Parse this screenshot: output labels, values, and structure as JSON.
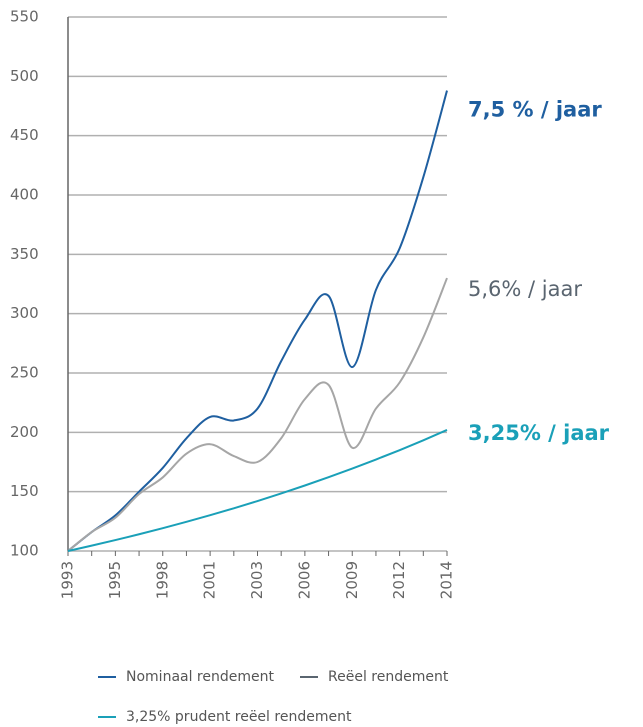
{
  "chart_data": {
    "type": "line",
    "categories": [
      "1993",
      null,
      "1995",
      null,
      "1998",
      null,
      "2001",
      null,
      "2003",
      null,
      "2006",
      null,
      "2009",
      null,
      "2012",
      null,
      "2014"
    ],
    "series": [
      {
        "name": "Nominaal rendement",
        "color": "#1f5fa0",
        "annotation": "7,5 % / jaar",
        "values": [
          100,
          116,
          130,
          150,
          170,
          195,
          213,
          210,
          220,
          260,
          295,
          315,
          255,
          320,
          355,
          415,
          488
        ]
      },
      {
        "name": "Reëel rendement",
        "color": "#a6a6a6",
        "annotation": "5,6% / jaar",
        "values": [
          100,
          116,
          128,
          148,
          162,
          182,
          190,
          180,
          175,
          195,
          228,
          240,
          187,
          220,
          242,
          280,
          330
        ]
      },
      {
        "name": "3,25% prudent reëel rendement",
        "color": "#1aa0b8",
        "annotation": "3,25% /  jaar",
        "values": [
          100,
          104.5,
          109.2,
          114.1,
          119.2,
          124.6,
          130.2,
          136,
          142.1,
          148.5,
          155.2,
          162.2,
          169.5,
          177.1,
          185,
          193.3,
          202
        ]
      }
    ],
    "ylim": [
      100,
      550
    ],
    "yticks": [
      100,
      150,
      200,
      250,
      300,
      350,
      400,
      450,
      500,
      550
    ],
    "grid": true
  }
}
